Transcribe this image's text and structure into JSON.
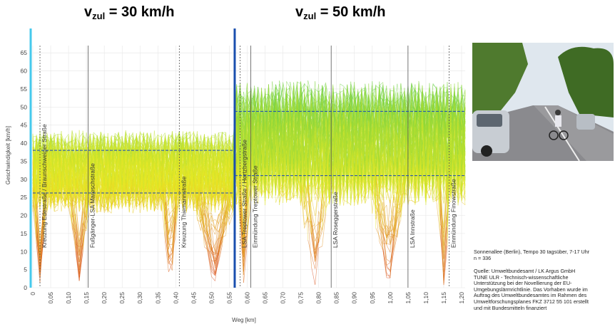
{
  "headings": {
    "left": {
      "base": "v",
      "sub": "zul",
      "rest": " = 30 km/h"
    },
    "right": {
      "base": "v",
      "sub": "zul",
      "rest": " = 50 km/h"
    }
  },
  "chart_data": {
    "type": "line",
    "xlabel": "Weg [km]",
    "ylabel": "Geschwindigkeit [km/h]",
    "xlim": [
      0,
      1.21
    ],
    "ylim": [
      0,
      67
    ],
    "x_ticks": [
      "0",
      "0,05",
      "0,10",
      "0,15",
      "0,20",
      "0,25",
      "0,30",
      "0,35",
      "0,40",
      "0,45",
      "0,50",
      "0,55",
      "0,60",
      "0,65",
      "0,70",
      "0,75",
      "0,80",
      "0,85",
      "0,90",
      "0,95",
      "1,00",
      "1,05",
      "1,10",
      "1,15",
      "1,20"
    ],
    "y_ticks": [
      0,
      5,
      10,
      15,
      20,
      25,
      30,
      35,
      40,
      45,
      50,
      55,
      60,
      65
    ],
    "grid": true,
    "zone_boundary_x": 0.565,
    "n_trips": 336,
    "markers": [
      {
        "x": 0.02,
        "label": "Kreuzung Edestraße / Braunschweiger Straße",
        "style": "dotted"
      },
      {
        "x": 0.155,
        "label": "Fußgänger-LSA Mareschstraße",
        "style": "solid"
      },
      {
        "x": 0.41,
        "label": "Kreuzung Thiemannstraße",
        "style": "dotted"
      },
      {
        "x": 0.58,
        "label": "LSA Treptower Straße / Hertzbergstraße",
        "style": "dotted"
      },
      {
        "x": 0.61,
        "label": "Einmündung Treptower Straße",
        "style": "solid"
      },
      {
        "x": 0.835,
        "label": "LSA Roseggerstraße",
        "style": "solid"
      },
      {
        "x": 1.05,
        "label": "LSA Innstraße",
        "style": "solid"
      },
      {
        "x": 1.165,
        "label": "Einmündung Finowstraße",
        "style": "dotted"
      }
    ],
    "bands": [
      {
        "x_from": 0,
        "x_to": 0.565,
        "lower": 26.2,
        "upper": 38
      },
      {
        "x_from": 0.565,
        "x_to": 1.21,
        "lower": 31,
        "upper": 48.8
      }
    ],
    "stop_zones": [
      {
        "x_from": 0.0,
        "x_to": 0.04
      },
      {
        "x_from": 0.1,
        "x_to": 0.16
      },
      {
        "x_from": 0.36,
        "x_to": 0.41
      },
      {
        "x_from": 0.45,
        "x_to": 0.565
      },
      {
        "x_from": 0.57,
        "x_to": 0.61
      },
      {
        "x_from": 0.74,
        "x_to": 0.84
      },
      {
        "x_from": 0.94,
        "x_to": 1.05
      },
      {
        "x_from": 1.13,
        "x_to": 1.17
      }
    ],
    "colors": {
      "fast": "#5ccd45",
      "mid": "#eaea25",
      "slow": "#d42a0c",
      "band_line": "#1a48b8",
      "zone_line": "#1a4fae",
      "left_axis_accent": "#45c9ec"
    }
  },
  "caption": {
    "line1": "Sonnenallee (Berlin), Tempo 30 tagsüber, 7-17 Uhr",
    "line2": "n = 336",
    "source": [
      "Quelle: Umweltbundesamt / LK Argus GmbH",
      "TUNE ULR - Technisch-wissenschaftliche",
      "Unterstützung bei der Novellierung der EU-",
      "Umgebungslärmrichtlinie. Das Vorhaben wurde im",
      "Auftrag des Umweltbundesamtes im Rahmen des",
      "Umweltforschungsplanes FKZ 3712 55 101 erstellt",
      "und mit Bundesmitteln finanziert"
    ]
  },
  "photo": {
    "description": "street-photo",
    "colors": {
      "sky": "#dfe7ee",
      "trees": "#4f7a2e",
      "road": "#8a8a8e",
      "car": "#c8cdd3"
    }
  }
}
